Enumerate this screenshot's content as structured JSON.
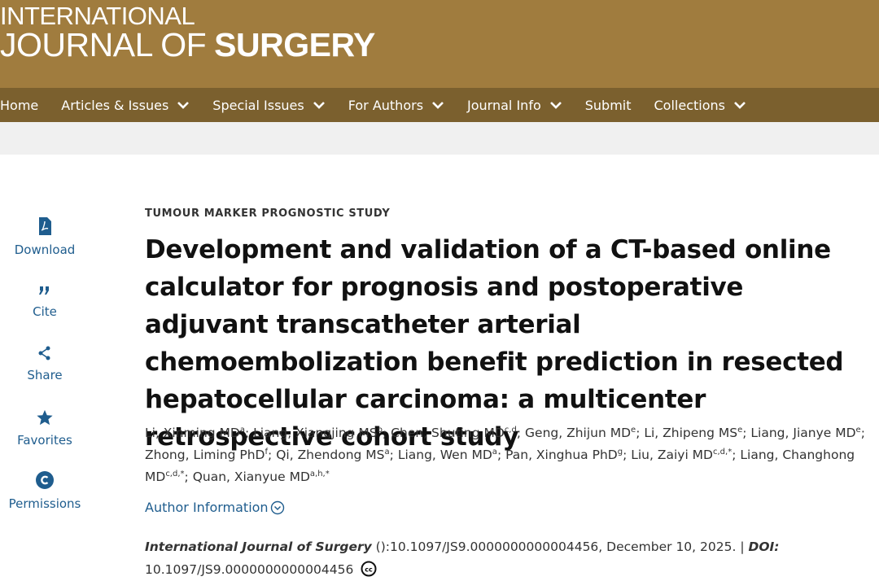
{
  "header": {
    "logo_line1": "INTERNATIONAL",
    "logo_line2_light": "JOURNAL OF",
    "logo_line2_bold": "SURGERY"
  },
  "nav": [
    {
      "label": "Home",
      "has_menu": false
    },
    {
      "label": "Articles & Issues",
      "has_menu": true
    },
    {
      "label": "Special Issues",
      "has_menu": true
    },
    {
      "label": "For Authors",
      "has_menu": true
    },
    {
      "label": "Journal Info",
      "has_menu": true
    },
    {
      "label": "Submit",
      "has_menu": false
    },
    {
      "label": "Collections",
      "has_menu": true
    }
  ],
  "sidebar": [
    "Download",
    "Cite",
    "Share",
    "Favorites",
    "Permissions"
  ],
  "article": {
    "section": "TUMOUR MARKER PROGNOSTIC STUDY",
    "title": "Development and validation of a CT-based online calculator for prognosis and postoperative adjuvant transcatheter arterial chemoembolization benefit prediction in resected hepatocellular carcinoma: a multicenter retrospective cohort study",
    "authors": [
      {
        "name": "Li, Xinming MD",
        "sup": "a",
        "punct": ";"
      },
      {
        "name": "Liang, Xiangjing MS",
        "sup": "b",
        "punct": ";"
      },
      {
        "name": "Chen, Shuting MD",
        "sup": "c,d",
        "punct": ";"
      },
      {
        "name": "Geng, Zhijun MD",
        "sup": "e",
        "punct": ";"
      },
      {
        "name": "Li, Zhipeng MS",
        "sup": "e",
        "punct": ";"
      },
      {
        "name": "Liang, Jianye MD",
        "sup": "e",
        "punct": ";"
      },
      {
        "name": "Zhong, Liming PhD",
        "sup": "f",
        "punct": ";"
      },
      {
        "name": "Qi, Zhendong MS",
        "sup": "a",
        "punct": ";"
      },
      {
        "name": "Liang, Wen MD",
        "sup": "a",
        "punct": ";"
      },
      {
        "name": "Pan, Xinghua PhD",
        "sup": "g",
        "punct": ";"
      },
      {
        "name": "Liu, Zaiyi MD",
        "sup": "c,d,*",
        "punct": ";"
      },
      {
        "name": "Liang, Changhong MD",
        "sup": "c,d,*",
        "punct": ";"
      },
      {
        "name": "Quan, Xianyue MD",
        "sup": "a,h,*"
      }
    ],
    "author_info": "Author Information",
    "journal": "International Journal of Surgery",
    "citation": "():10.1097/JS9.0000000000004456, December 10, 2025. |",
    "doi_label": "DOI:",
    "doi": "10.1097/JS9.0000000000004456"
  }
}
